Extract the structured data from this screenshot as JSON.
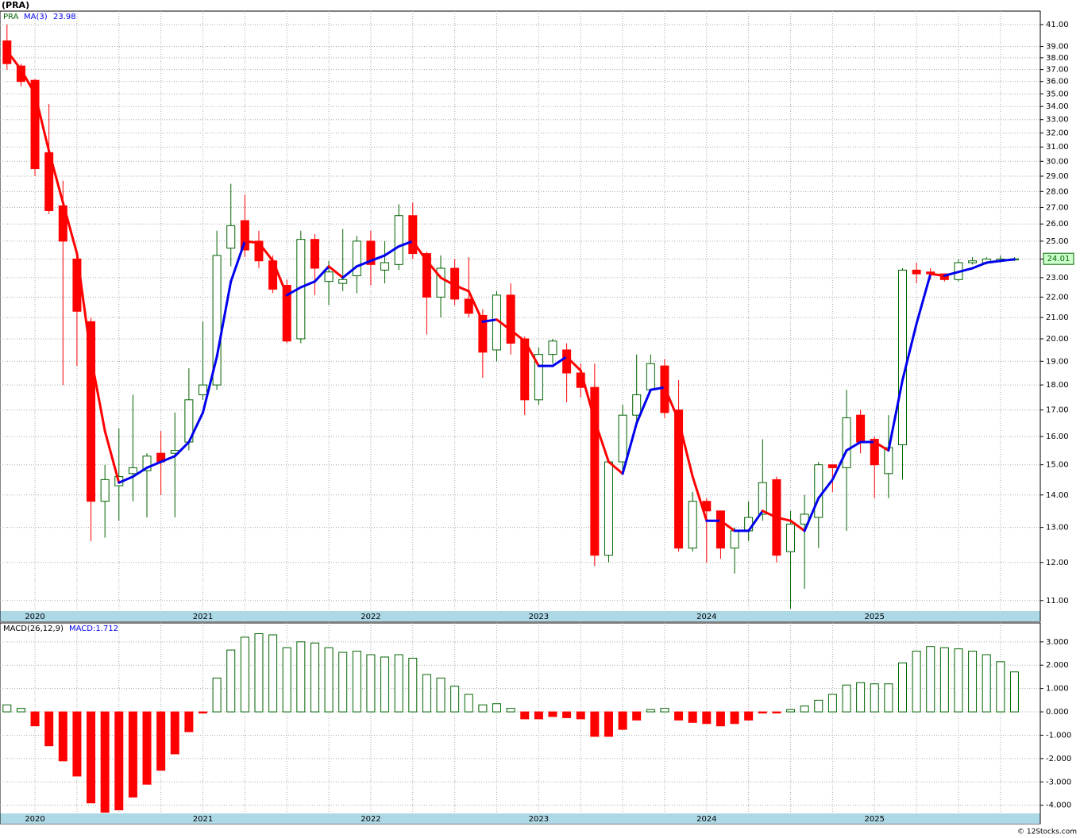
{
  "chart_data": [
    {
      "type": "candlestick",
      "title": "(PRA)",
      "name": "PRA",
      "log_scale": true,
      "grid": true,
      "up_color": "#006400",
      "down_color": "#ff0000",
      "categories": [
        null,
        null,
        "2020",
        null,
        null,
        null,
        null,
        null,
        null,
        null,
        null,
        null,
        null,
        null,
        "2021",
        null,
        null,
        null,
        null,
        null,
        null,
        null,
        null,
        null,
        null,
        null,
        "2022",
        null,
        null,
        null,
        null,
        null,
        null,
        null,
        null,
        null,
        null,
        null,
        "2023",
        null,
        null,
        null,
        null,
        null,
        null,
        null,
        null,
        null,
        null,
        null,
        "2024",
        null,
        null,
        null,
        null,
        null,
        null,
        null,
        null,
        null,
        null,
        null,
        "2025",
        null,
        null,
        null,
        null,
        null,
        null,
        null,
        null,
        null,
        null
      ],
      "open": [
        39.5,
        37.3,
        36.1,
        30.6,
        27.1,
        24.0,
        20.8,
        13.8,
        14.3,
        14.7,
        14.8,
        15.4,
        15.4,
        15.8,
        17.6,
        18.0,
        24.6,
        26.2,
        25.0,
        23.9,
        22.6,
        20.0,
        25.1,
        22.8,
        22.7,
        23.1,
        25.0,
        23.4,
        23.7,
        26.5,
        24.3,
        22.0,
        23.5,
        21.9,
        21.1,
        19.5,
        22.1,
        20.0,
        17.4,
        19.3,
        19.5,
        18.5,
        17.9,
        12.2,
        15.1,
        16.8,
        17.8,
        18.8,
        17.0,
        12.4,
        13.8,
        13.5,
        12.4,
        12.9,
        13.4,
        14.5,
        12.3,
        13.1,
        13.3,
        15.0,
        14.9,
        16.8,
        15.9,
        14.7,
        15.7,
        23.4,
        23.3,
        23.2,
        22.9,
        23.8,
        23.8,
        23.9,
        23.95
      ],
      "high": [
        41.0,
        37.5,
        36.2,
        34.2,
        28.7,
        24.3,
        21.0,
        15.0,
        16.3,
        17.6,
        15.4,
        16.2,
        16.9,
        18.7,
        20.8,
        25.6,
        28.5,
        27.8,
        25.6,
        24.2,
        22.9,
        25.6,
        25.4,
        23.9,
        25.7,
        25.3,
        25.6,
        25.0,
        27.2,
        27.3,
        24.4,
        24.2,
        24.0,
        24.1,
        21.4,
        22.3,
        22.7,
        20.1,
        19.6,
        20.0,
        19.8,
        18.9,
        18.9,
        15.2,
        17.2,
        19.3,
        19.3,
        19.1,
        18.2,
        14.1,
        13.9,
        13.5,
        13.0,
        13.8,
        15.9,
        14.6,
        13.5,
        14.0,
        15.1,
        15.0,
        17.8,
        17.0,
        16.0,
        16.8,
        23.5,
        23.8,
        23.5,
        23.2,
        24.0,
        24.1,
        24.1,
        24.2,
        24.1
      ],
      "low": [
        37.0,
        35.6,
        29.0,
        26.6,
        18.0,
        18.8,
        12.6,
        12.7,
        13.2,
        13.8,
        13.3,
        14.0,
        13.3,
        15.5,
        17.4,
        17.8,
        23.6,
        24.1,
        23.5,
        22.2,
        19.8,
        19.8,
        22.1,
        21.6,
        22.3,
        22.2,
        22.6,
        22.7,
        23.4,
        24.0,
        20.2,
        21.0,
        21.6,
        21.0,
        18.3,
        19.0,
        19.3,
        16.8,
        17.2,
        18.9,
        17.3,
        17.5,
        11.9,
        12.0,
        14.7,
        16.5,
        17.7,
        16.7,
        12.3,
        12.3,
        12.0,
        12.1,
        11.7,
        12.6,
        13.2,
        12.0,
        10.8,
        11.3,
        12.4,
        14.1,
        12.9,
        15.4,
        13.9,
        13.9,
        14.5,
        22.7,
        22.9,
        22.8,
        22.8,
        23.7,
        23.7,
        23.8,
        23.9
      ],
      "close": [
        37.5,
        36.0,
        29.5,
        26.8,
        25.0,
        21.3,
        13.8,
        14.5,
        14.6,
        14.9,
        15.3,
        15.1,
        15.5,
        17.4,
        18.0,
        24.2,
        25.9,
        24.5,
        23.9,
        22.4,
        19.9,
        25.1,
        23.5,
        23.3,
        22.9,
        25.0,
        23.7,
        23.8,
        26.5,
        24.3,
        22.0,
        23.5,
        21.9,
        21.2,
        19.4,
        22.1,
        19.8,
        17.4,
        19.3,
        19.9,
        18.5,
        17.9,
        12.2,
        15.1,
        16.8,
        17.6,
        18.9,
        16.9,
        12.4,
        13.8,
        13.5,
        12.4,
        12.9,
        13.3,
        14.4,
        12.2,
        13.1,
        13.4,
        15.0,
        14.9,
        16.7,
        15.8,
        15.0,
        15.6,
        23.4,
        23.2,
        23.2,
        22.9,
        23.8,
        23.9,
        24.0,
        24.0,
        24.01
      ],
      "ma": {
        "name": "MA(3)",
        "rise_color": "#0000ee",
        "fall_color": "#ff0000",
        "values": [
          38.6,
          37.0,
          35.0,
          30.7,
          27.3,
          24.3,
          19.2,
          16.2,
          14.4,
          14.6,
          14.9,
          15.1,
          15.3,
          15.8,
          16.9,
          19.2,
          22.8,
          25.0,
          24.9,
          23.9,
          22.1,
          22.5,
          22.8,
          23.6,
          23.0,
          23.6,
          23.9,
          24.2,
          24.7,
          25.0,
          23.9,
          23.0,
          22.6,
          22.3,
          20.8,
          20.9,
          20.4,
          19.9,
          18.8,
          18.8,
          19.2,
          18.6,
          16.6,
          15.1,
          14.7,
          16.5,
          17.8,
          17.9,
          16.6,
          14.6,
          13.2,
          13.2,
          12.9,
          12.9,
          13.5,
          13.3,
          13.2,
          12.9,
          13.9,
          14.5,
          15.5,
          15.8,
          15.8,
          15.5,
          18.2,
          20.7,
          23.2,
          23.1,
          23.3,
          23.5,
          23.8,
          23.9,
          23.98
        ]
      },
      "ylim": [
        10.74,
        42.28
      ],
      "yticks": [
        {
          "value": 11,
          "label": "11.00"
        },
        {
          "value": 12,
          "label": "12.00"
        },
        {
          "value": 13,
          "label": "13.00"
        },
        {
          "value": 14,
          "label": "14.00"
        },
        {
          "value": 15,
          "label": "15.00"
        },
        {
          "value": 16,
          "label": "16.00"
        },
        {
          "value": 17,
          "label": "17.00"
        },
        {
          "value": 18,
          "label": "18.00"
        },
        {
          "value": 19,
          "label": "19.00"
        },
        {
          "value": 20,
          "label": "20.00"
        },
        {
          "value": 21,
          "label": "21.00"
        },
        {
          "value": 22,
          "label": "22.00"
        },
        {
          "value": 23,
          "label": "23.00"
        },
        {
          "value": 24,
          "label": "24.00"
        },
        {
          "value": 25,
          "label": "25.00"
        },
        {
          "value": 26,
          "label": "26.00"
        },
        {
          "value": 27,
          "label": "27.00"
        },
        {
          "value": 28,
          "label": "28.00"
        },
        {
          "value": 29,
          "label": "29.00"
        },
        {
          "value": 30,
          "label": "30.00"
        },
        {
          "value": 31,
          "label": "31.00"
        },
        {
          "value": 32,
          "label": "32.00"
        },
        {
          "value": 33,
          "label": "33.00"
        },
        {
          "value": 34,
          "label": "34.00"
        },
        {
          "value": 35,
          "label": "35.00"
        },
        {
          "value": 36,
          "label": "36.00"
        },
        {
          "value": 37,
          "label": "37.00"
        },
        {
          "value": 38,
          "label": "38.00"
        },
        {
          "value": 39,
          "label": "39.00"
        },
        {
          "value": 41,
          "label": "41.00"
        }
      ]
    },
    {
      "type": "bar",
      "title": "MACD(26,12,9)",
      "current": "MACD:1.712",
      "grid": true,
      "up_color": "#006400",
      "down_color": "#ff0000",
      "categories": [
        null,
        null,
        "2020",
        null,
        null,
        null,
        null,
        null,
        null,
        null,
        null,
        null,
        null,
        null,
        "2021",
        null,
        null,
        null,
        null,
        null,
        null,
        null,
        null,
        null,
        null,
        null,
        "2022",
        null,
        null,
        null,
        null,
        null,
        null,
        null,
        null,
        null,
        null,
        null,
        "2023",
        null,
        null,
        null,
        null,
        null,
        null,
        null,
        null,
        null,
        null,
        null,
        "2024",
        null,
        null,
        null,
        null,
        null,
        null,
        null,
        null,
        null,
        null,
        null,
        "2025",
        null,
        null,
        null,
        null,
        null,
        null,
        null,
        null,
        null,
        null
      ],
      "values": [
        0.3,
        0.15,
        -0.6,
        -1.45,
        -2.1,
        -2.75,
        -3.9,
        -4.3,
        -4.2,
        -3.65,
        -3.1,
        -2.5,
        -1.8,
        -0.85,
        -0.05,
        1.45,
        2.65,
        3.2,
        3.35,
        3.3,
        2.75,
        3.0,
        2.95,
        2.75,
        2.55,
        2.6,
        2.45,
        2.35,
        2.45,
        2.3,
        1.6,
        1.45,
        1.1,
        0.75,
        0.3,
        0.35,
        0.15,
        -0.3,
        -0.3,
        -0.2,
        -0.25,
        -0.3,
        -1.05,
        -1.05,
        -0.75,
        -0.35,
        0.1,
        0.15,
        -0.35,
        -0.45,
        -0.5,
        -0.6,
        -0.5,
        -0.35,
        -0.05,
        -0.05,
        0.1,
        0.25,
        0.5,
        0.75,
        1.15,
        1.25,
        1.2,
        1.2,
        2.1,
        2.6,
        2.8,
        2.75,
        2.7,
        2.6,
        2.45,
        2.15,
        1.712
      ],
      "ylim": [
        -4.35,
        3.81
      ],
      "yticks": [
        {
          "value": 3,
          "label": "3.000"
        },
        {
          "value": 2,
          "label": "2.000"
        },
        {
          "value": 1,
          "label": "1.000"
        },
        {
          "value": 0,
          "label": "0.000"
        },
        {
          "value": -1,
          "label": "-1.000"
        },
        {
          "value": -2,
          "label": "-2.000"
        },
        {
          "value": -3,
          "label": "-3.000"
        },
        {
          "value": -4,
          "label": "-4.000"
        }
      ]
    }
  ],
  "footer": "© 12Stocks.com"
}
